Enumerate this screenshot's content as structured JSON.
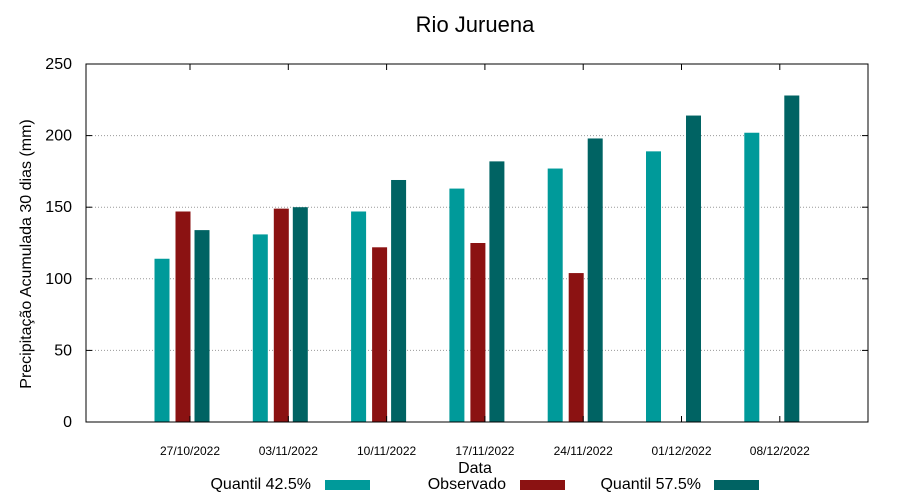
{
  "chart_data": {
    "type": "bar",
    "title": "Rio Juruena",
    "xlabel": "Data",
    "ylabel": "Precipitação Acumulada 30 dias (mm)",
    "ylim": [
      0,
      250
    ],
    "yticks": [
      0,
      50,
      100,
      150,
      200,
      250
    ],
    "grid": true,
    "legend_position": "bottom",
    "categories": [
      "27/10/2022",
      "03/11/2022",
      "10/11/2022",
      "17/11/2022",
      "24/11/2022",
      "01/12/2022",
      "08/12/2022"
    ],
    "series": [
      {
        "name": "Quantil 42.5%",
        "color": "#009a9a",
        "values": [
          114,
          131,
          147,
          163,
          177,
          189,
          202
        ]
      },
      {
        "name": "Observado",
        "color": "#8b1212",
        "values": [
          147,
          149,
          122,
          125,
          104,
          null,
          null
        ]
      },
      {
        "name": "Quantil 57.5%",
        "color": "#006363",
        "values": [
          134,
          150,
          169,
          182,
          198,
          214,
          228
        ]
      }
    ]
  }
}
